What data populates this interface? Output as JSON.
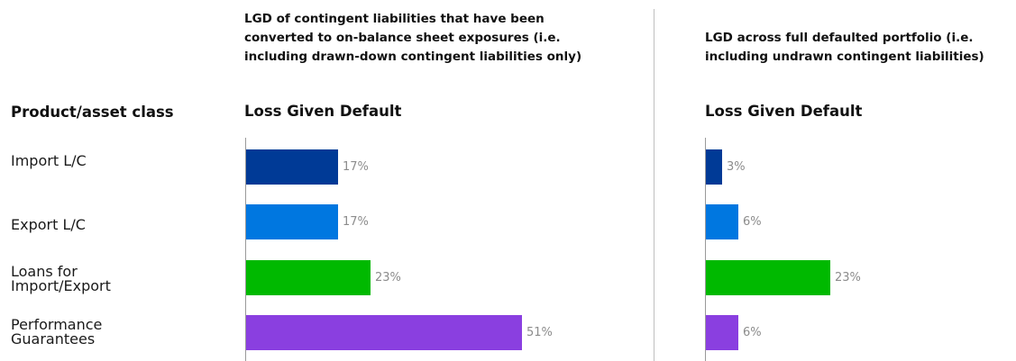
{
  "row_header": "Product/asset class",
  "colors": {
    "import_lc": "#003a96",
    "export_lc": "#0077e0",
    "loans": "#00b900",
    "guarantees": "#8a3fe0",
    "value_label": "#8c8c8c",
    "divider": "#bfbfbf"
  },
  "chart_data": [
    {
      "type": "bar",
      "orientation": "horizontal",
      "title": "LGD of contingent liabilities that have been converted to on-balance sheet exposures (i.e. including drawn-down contingent liabilities only)",
      "xlabel": "Loss Given Default",
      "categories": [
        "Import L/C",
        "Export L/C",
        "Loans for Import/Export",
        "Performance Guarantees"
      ],
      "values": [
        17,
        17,
        23,
        51
      ],
      "value_labels": [
        "17%",
        "17%",
        "23%",
        "51%"
      ],
      "unit": "%",
      "xlim": [
        0,
        60
      ],
      "grid": false
    },
    {
      "type": "bar",
      "orientation": "horizontal",
      "title": "LGD across full defaulted portfolio (i.e. including undrawn contingent liabilities)",
      "xlabel": "Loss Given Default",
      "categories": [
        "Import L/C",
        "Export L/C",
        "Loans for Import/Export",
        "Performance Guarantees"
      ],
      "values": [
        3,
        6,
        23,
        6
      ],
      "value_labels": [
        "3%",
        "6%",
        "23%",
        "6%"
      ],
      "unit": "%",
      "xlim": [
        0,
        60
      ],
      "grid": false
    }
  ],
  "category_labels": [
    {
      "line1": "Import L/C",
      "line2": ""
    },
    {
      "line1": "Export L/C",
      "line2": ""
    },
    {
      "line1": "Loans for",
      "line2": "Import/Export"
    },
    {
      "line1": "Performance",
      "line2": "Guarantees"
    }
  ],
  "title1_lines": [
    "LGD of contingent liabilities that have been",
    "converted to on-balance sheet exposures (i.e.",
    "including drawn-down contingent liabilities only)"
  ],
  "title2_lines": [
    "LGD across full defaulted portfolio (i.e.",
    "including undrawn contingent liabilities)"
  ]
}
